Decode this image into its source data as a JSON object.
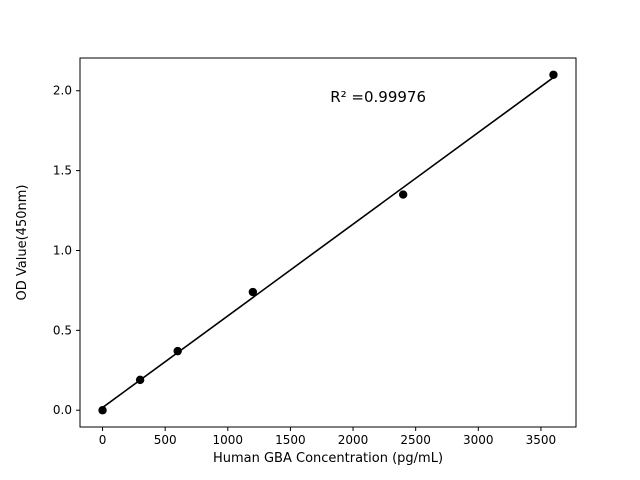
{
  "chart_data": {
    "type": "scatter",
    "title": "",
    "xlabel": "Human GBA Concentration (pg/mL)",
    "ylabel": "OD Value(450nm)",
    "x": [
      0,
      300,
      600,
      1200,
      2400,
      3600
    ],
    "y": [
      0.0,
      0.19,
      0.37,
      0.74,
      1.35,
      2.1
    ],
    "fit_line": true,
    "annotation": {
      "text": "R² =0.99976",
      "x": 2200,
      "y": 1.93
    },
    "xlim": [
      -180,
      3780
    ],
    "ylim": [
      -0.105,
      2.205
    ],
    "xticks": [
      0,
      500,
      1000,
      1500,
      2000,
      2500,
      3000,
      3500
    ],
    "yticks": [
      0.0,
      0.5,
      1.0,
      1.5,
      2.0
    ],
    "grid": false,
    "legend": "none",
    "marker_color": "#000000",
    "line_color": "#000000",
    "axis_color": "#000000",
    "background": "#ffffff"
  }
}
